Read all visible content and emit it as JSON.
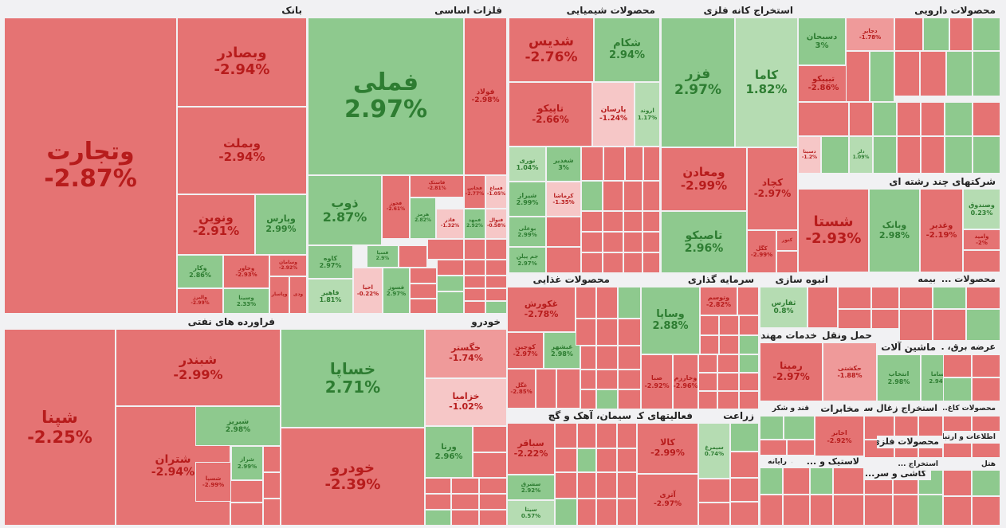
{
  "colors": {
    "neg_strong": "#e57373",
    "neg_mid": "#ef9a9a",
    "neg_light": "#f6c7c7",
    "pos_strong": "#8ec98e",
    "pos_light": "#b5dcb2",
    "background": "#f1f1f3"
  },
  "chart_data": {
    "type": "treemap",
    "title": "",
    "sectors": [
      {
        "id": "bank",
        "name": "بانک",
        "stocks": [
          {
            "id": "vtejarat",
            "name": "وتجارت",
            "change": -2.87
          },
          {
            "id": "vbsadr",
            "name": "وبصادر",
            "change": -2.94
          },
          {
            "id": "vbmelat",
            "name": "وبملت",
            "change": -2.94
          },
          {
            "id": "vnovin",
            "name": "ونوین",
            "change": -2.91
          },
          {
            "id": "vparis",
            "name": "وپارس",
            "change": 2.99
          },
          {
            "id": "vkar",
            "name": "وکار",
            "change": 2.86
          },
          {
            "id": "vkhavar",
            "name": "وخاور",
            "change": -2.93
          },
          {
            "id": "vsaman",
            "name": "وسامان",
            "change": -2.92
          },
          {
            "id": "vsina",
            "name": "وسینا",
            "change": 2.33
          },
          {
            "id": "vpasar",
            "name": "وپاسار"
          },
          {
            "id": "vdey",
            "name": "ودی"
          },
          {
            "id": "valborz",
            "name": "والبرز",
            "change": -2.99
          }
        ]
      },
      {
        "id": "metals",
        "name": "فلزات اساسی",
        "stocks": [
          {
            "id": "fmeli",
            "name": "فملی",
            "change": 2.97
          },
          {
            "id": "folad",
            "name": "فولاد",
            "change": -2.98
          },
          {
            "id": "zob",
            "name": "ذوب",
            "change": 2.87
          },
          {
            "id": "kave",
            "name": "کاوه",
            "change": 2.97
          },
          {
            "id": "fakhoz",
            "name": "فخوز",
            "change": -2.61
          },
          {
            "id": "hormoz",
            "name": "هرمز",
            "change": 2.82
          },
          {
            "id": "fsepa",
            "name": "فسپا",
            "change": 2.9
          },
          {
            "id": "fnoor",
            "name": "فنوال",
            "change": -0.58
          },
          {
            "id": "fanazar",
            "name": "فاذر",
            "change": -1.32
          },
          {
            "id": "fkhas",
            "name": "فخاس",
            "change": -2.77
          },
          {
            "id": "fastak",
            "name": "فاستک",
            "change": -2.81
          },
          {
            "id": "fsagh",
            "name": "فساغ",
            "change": -1.05
          },
          {
            "id": "fahir",
            "name": "فاهیر",
            "change": 1.81
          },
          {
            "id": "ahya",
            "name": "احیا",
            "change": -0.22
          },
          {
            "id": "fsoz",
            "name": "فسوز",
            "change": 2.97
          },
          {
            "id": "fmahd",
            "name": "فمهد",
            "change": 2.92
          }
        ]
      },
      {
        "id": "chem",
        "name": "محصولات شیمیایی",
        "stocks": [
          {
            "id": "shadis",
            "name": "شدیس",
            "change": -2.76
          },
          {
            "id": "shekam",
            "name": "شکام",
            "change": 2.94
          },
          {
            "id": "tapiko",
            "name": "تاپیکو",
            "change": -2.66
          },
          {
            "id": "parsan",
            "name": "پارسان",
            "change": -1.24
          },
          {
            "id": "arvand",
            "name": "اروند",
            "change": 1.17
          },
          {
            "id": "nouri",
            "name": "نوری",
            "change": 1.04
          },
          {
            "id": "shghadir",
            "name": "شغدیر",
            "change": 3
          },
          {
            "id": "shiraz",
            "name": "شیراز",
            "change": 2.99
          },
          {
            "id": "karma",
            "name": "کرماشا",
            "change": -1.35
          },
          {
            "id": "buali",
            "name": "بوعلی",
            "change": 2.99
          },
          {
            "id": "jam",
            "name": "جم پیلن",
            "change": 2.97
          }
        ]
      },
      {
        "id": "mining",
        "name": "استخراج کانه فلزی",
        "stocks": [
          {
            "id": "fazar",
            "name": "فزر",
            "change": 2.97
          },
          {
            "id": "kama",
            "name": "کاما",
            "change": 1.82
          },
          {
            "id": "vmaadan",
            "name": "ومعادن",
            "change": -2.99
          },
          {
            "id": "kgehad",
            "name": "کچاد",
            "change": -2.97
          },
          {
            "id": "tapsiko",
            "name": "تاصیکو",
            "change": 2.96
          },
          {
            "id": "kgol",
            "name": "کگل",
            "change": -2.99
          },
          {
            "id": "knor",
            "name": "کنور"
          }
        ]
      },
      {
        "id": "pharma",
        "name": "محصولات دارویی",
        "stocks": [
          {
            "id": "dsobhan",
            "name": "دسبحان",
            "change": 3
          },
          {
            "id": "dgaber",
            "name": "دجابر",
            "change": -1.78
          },
          {
            "id": "tipiko",
            "name": "تیپیکو",
            "change": -2.86
          },
          {
            "id": "dlor",
            "name": "دلر",
            "change": 1.09
          },
          {
            "id": "dsina",
            "name": "دسینا",
            "change": -1.2
          }
        ]
      },
      {
        "id": "multi",
        "name": "شرکتهای چند رشته ای",
        "stocks": [
          {
            "id": "shasta",
            "name": "شستا",
            "change": -2.93
          },
          {
            "id": "vbank",
            "name": "وبانک",
            "change": 2.98
          },
          {
            "id": "vghadir",
            "name": "وغدیر",
            "change": -2.19
          },
          {
            "id": "vsandogh",
            "name": "وصندوق",
            "change": 0.23
          },
          {
            "id": "vamid",
            "name": "وامید",
            "change": -2
          }
        ]
      },
      {
        "id": "refinery",
        "name": "فراورده های نفتی",
        "stocks": [
          {
            "id": "shpna",
            "name": "شپنا",
            "change": -2.25
          },
          {
            "id": "shbandar",
            "name": "شبندر",
            "change": -2.99
          },
          {
            "id": "shtran",
            "name": "شتران",
            "change": -2.94
          },
          {
            "id": "shabriz",
            "name": "شبریز",
            "change": 2.98
          },
          {
            "id": "shraz",
            "name": "شراز",
            "change": 2.99
          },
          {
            "id": "shsina",
            "name": "شسپا",
            "change": -2.99
          }
        ]
      },
      {
        "id": "auto",
        "name": "خودرو",
        "stocks": [
          {
            "id": "khsapa",
            "name": "خساپا",
            "change": 2.71
          },
          {
            "id": "khodro",
            "name": "خودرو",
            "change": -2.39
          },
          {
            "id": "khgostar",
            "name": "خگستر",
            "change": -1.74
          },
          {
            "id": "khzamia",
            "name": "خزامیا",
            "change": -1.02
          },
          {
            "id": "vrana",
            "name": "ورنا",
            "change": 2.96
          }
        ]
      },
      {
        "id": "food",
        "name": "محصولات غذایی",
        "stocks": [
          {
            "id": "ghkoresh",
            "name": "غکورش",
            "change": -2.78
          },
          {
            "id": "ghkorosh2",
            "name": "کوچین",
            "change": -2.97
          },
          {
            "id": "ghshahd",
            "name": "غبشهر",
            "change": 2.98
          },
          {
            "id": "ghgol",
            "name": "غگل",
            "change": -2.85
          }
        ]
      },
      {
        "id": "invest",
        "name": "سرمایه گذاری",
        "stocks": [
          {
            "id": "vsapa",
            "name": "وساپا",
            "change": 2.88
          },
          {
            "id": "vtosam",
            "name": "وتوسم",
            "change": -2.82
          },
          {
            "id": "vsna",
            "name": "صبا",
            "change": -2.92
          },
          {
            "id": "vkharazm",
            "name": "وخارزم",
            "change": -2.96
          }
        ]
      },
      {
        "id": "cement",
        "name": "سیمان، آهک و گچ",
        "stocks": [
          {
            "id": "sbagher",
            "name": "سباقر",
            "change": -2.22
          },
          {
            "id": "sshargh",
            "name": "سشرق",
            "change": 2.92
          },
          {
            "id": "sita",
            "name": "سیتا",
            "change": 0.57
          }
        ]
      },
      {
        "id": "agri",
        "name": "زراعت",
        "stocks": [
          {
            "id": "simor",
            "name": "سیمرغ",
            "change": 0.74
          }
        ]
      },
      {
        "id": "construction",
        "name": "انبوه سازی",
        "stocks": [
          {
            "id": "tfars",
            "name": "ثفارس",
            "change": 0.8
          }
        ]
      },
      {
        "id": "transport",
        "name": "حمل ونقل",
        "stocks": [
          {
            "id": "hkeshti",
            "name": "حکشتی",
            "change": -1.88
          }
        ]
      },
      {
        "id": "services",
        "name": "خدمات مهندسی",
        "stocks": [
          {
            "id": "rmapna",
            "name": "رمپنا",
            "change": -2.97
          }
        ]
      },
      {
        "id": "machinery",
        "name": "ماشین آلات",
        "stocks": [
          {
            "id": "tekhabar",
            "name": "انتخاب",
            "change": 2.98
          },
          {
            "id": "bsama",
            "name": "بساما",
            "change": 2.94
          }
        ]
      },
      {
        "id": "tech",
        "name": "فعالیتهای کمپیوتری",
        "stocks": [
          {
            "id": "kala",
            "name": "کالا",
            "change": -2.99
          },
          {
            "id": "atri",
            "name": "آتری",
            "change": -2.97
          }
        ]
      },
      {
        "id": "telecom",
        "name": "مخابرات",
        "stocks": [
          {
            "id": "akhabr",
            "name": "اخابر",
            "change": -2.92
          }
        ]
      }
    ]
  },
  "labels": {
    "small_headers": [
      "بیمه",
      "محصولات ...",
      "عرضه برق، ...",
      "قند و شکر",
      "لاستیک و ...",
      "ماشین آلا...",
      "کاشی و سر...",
      "محصولات فلزی",
      "استخراج زغال سنگ",
      "رایانه",
      "محصولات کاغ...",
      "اطلاعات و ارتبا...",
      "استخراج ...",
      "هتل"
    ]
  }
}
